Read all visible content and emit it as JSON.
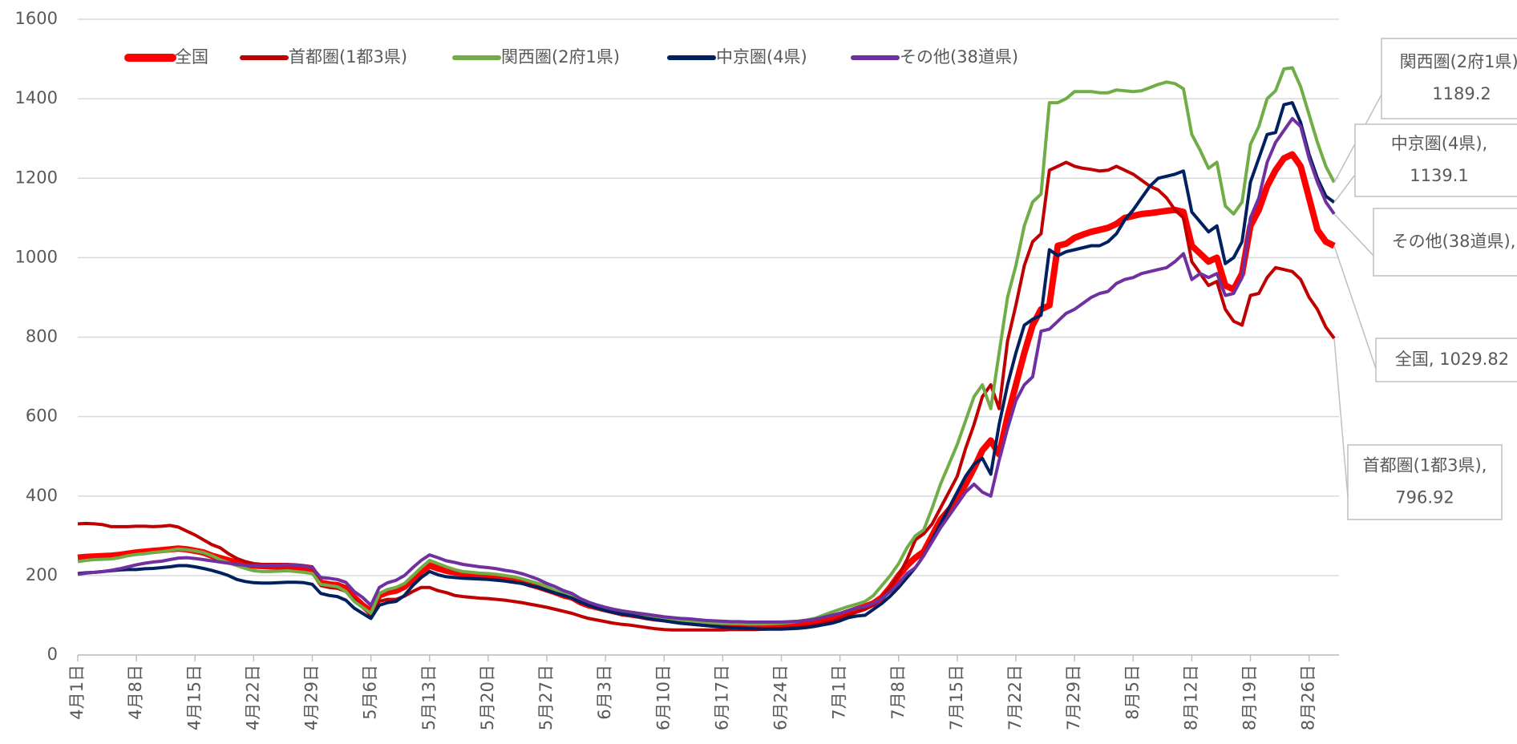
{
  "chart_data": {
    "type": "line",
    "categories": [
      "4月1日",
      null,
      null,
      null,
      null,
      null,
      null,
      "4月8日",
      null,
      null,
      null,
      null,
      null,
      null,
      "4月15日",
      null,
      null,
      null,
      null,
      null,
      null,
      "4月22日",
      null,
      null,
      null,
      null,
      null,
      null,
      "4月29日",
      null,
      null,
      null,
      null,
      null,
      null,
      "5月6日",
      null,
      null,
      null,
      null,
      null,
      null,
      "5月13日",
      null,
      null,
      null,
      null,
      null,
      null,
      "5月20日",
      null,
      null,
      null,
      null,
      null,
      null,
      "5月27日",
      null,
      null,
      null,
      null,
      null,
      null,
      "6月3日",
      null,
      null,
      null,
      null,
      null,
      null,
      "6月10日",
      null,
      null,
      null,
      null,
      null,
      null,
      "6月17日",
      null,
      null,
      null,
      null,
      null,
      null,
      "6月24日",
      null,
      null,
      null,
      null,
      null,
      null,
      "7月1日",
      null,
      null,
      null,
      null,
      null,
      null,
      "7月8日",
      null,
      null,
      null,
      null,
      null,
      null,
      "7月15日",
      null,
      null,
      null,
      null,
      null,
      null,
      "7月22日",
      null,
      null,
      null,
      null,
      null,
      null,
      "7月29日",
      null,
      null,
      null,
      null,
      null,
      null,
      "8月5日",
      null,
      null,
      null,
      null,
      null,
      null,
      "8月12日",
      null,
      null,
      null,
      null,
      null,
      null,
      "8月19日",
      null,
      null,
      null,
      null,
      null,
      null,
      "8月26日",
      null,
      null,
      null
    ],
    "series": [
      {
        "name": "全国",
        "color": "#ff0000",
        "width": 8,
        "end_label": [
          "全国, 1029.82"
        ],
        "values": [
          245,
          247,
          248,
          249,
          250,
          252,
          255,
          258,
          260,
          262,
          264,
          266,
          268,
          266,
          262,
          258,
          250,
          244,
          238,
          232,
          228,
          225,
          224,
          223,
          223,
          222,
          220,
          218,
          215,
          182,
          178,
          176,
          168,
          145,
          125,
          110,
          150,
          158,
          162,
          172,
          190,
          210,
          225,
          218,
          212,
          208,
          205,
          203,
          201,
          200,
          197,
          193,
          190,
          185,
          178,
          172,
          165,
          158,
          150,
          145,
          133,
          125,
          120,
          115,
          110,
          105,
          102,
          99,
          95,
          92,
          90,
          87,
          84,
          82,
          80,
          78,
          77,
          76,
          75,
          75,
          74,
          74,
          74,
          75,
          75,
          76,
          78,
          80,
          85,
          90,
          95,
          100,
          108,
          115,
          122,
          130,
          145,
          170,
          200,
          225,
          245,
          260,
          300,
          340,
          365,
          390,
          430,
          470,
          515,
          540,
          505,
          600,
          680,
          760,
          830,
          870,
          880,
          1030,
          1035,
          1050,
          1058,
          1065,
          1070,
          1075,
          1085,
          1100,
          1105,
          1110,
          1112,
          1115,
          1118,
          1120,
          1115,
          1030,
          1010,
          990,
          1000,
          930,
          920,
          960,
          1080,
          1120,
          1180,
          1220,
          1250,
          1260,
          1230,
          1150,
          1070,
          1040,
          1029.82
        ]
      },
      {
        "name": "首都圏(1都3県)",
        "color": "#c00000",
        "width": 4,
        "end_label": [
          "首都圏(1都3県),",
          "796.92"
        ],
        "values": [
          330,
          331,
          330,
          328,
          323,
          323,
          323,
          324,
          324,
          323,
          324,
          326,
          322,
          312,
          302,
          290,
          278,
          270,
          255,
          243,
          235,
          230,
          228,
          228,
          228,
          228,
          227,
          225,
          222,
          175,
          170,
          168,
          160,
          140,
          120,
          100,
          135,
          140,
          140,
          148,
          160,
          170,
          170,
          162,
          157,
          150,
          147,
          145,
          143,
          142,
          140,
          138,
          135,
          132,
          128,
          124,
          120,
          115,
          110,
          105,
          98,
          92,
          88,
          84,
          80,
          77,
          75,
          72,
          69,
          66,
          64,
          63,
          63,
          63,
          63,
          63,
          63,
          63,
          64,
          64,
          64,
          64,
          65,
          66,
          67,
          68,
          70,
          72,
          75,
          80,
          85,
          92,
          100,
          108,
          115,
          125,
          145,
          170,
          200,
          240,
          290,
          305,
          330,
          370,
          410,
          450,
          520,
          580,
          650,
          680,
          620,
          790,
          880,
          980,
          1040,
          1060,
          1220,
          1230,
          1240,
          1230,
          1225,
          1222,
          1218,
          1220,
          1230,
          1220,
          1210,
          1195,
          1180,
          1170,
          1150,
          1120,
          1100,
          990,
          960,
          930,
          940,
          870,
          840,
          830,
          905,
          910,
          950,
          975,
          970,
          965,
          945,
          900,
          870,
          825,
          796.92
        ]
      },
      {
        "name": "関西圏(2府1県)",
        "color": "#70ad47",
        "width": 4,
        "end_label": [
          "関西圏(2府1県),",
          "1189.2"
        ],
        "values": [
          235,
          238,
          240,
          241,
          242,
          245,
          250,
          253,
          255,
          258,
          260,
          263,
          267,
          265,
          262,
          258,
          250,
          240,
          232,
          225,
          218,
          212,
          210,
          210,
          211,
          212,
          210,
          208,
          205,
          178,
          175,
          172,
          160,
          135,
          120,
          105,
          155,
          165,
          170,
          180,
          200,
          220,
          238,
          230,
          222,
          215,
          210,
          208,
          206,
          205,
          203,
          200,
          197,
          192,
          186,
          180,
          172,
          162,
          155,
          148,
          137,
          128,
          122,
          117,
          112,
          108,
          104,
          100,
          97,
          94,
          92,
          90,
          88,
          86,
          84,
          82,
          81,
          80,
          79,
          79,
          78,
          78,
          78,
          79,
          80,
          82,
          85,
          88,
          92,
          100,
          108,
          115,
          122,
          128,
          135,
          150,
          175,
          200,
          230,
          270,
          300,
          315,
          370,
          430,
          480,
          530,
          590,
          650,
          680,
          620,
          760,
          900,
          980,
          1080,
          1140,
          1160,
          1390,
          1390,
          1400,
          1418,
          1418,
          1418,
          1415,
          1415,
          1422,
          1420,
          1418,
          1420,
          1428,
          1436,
          1442,
          1438,
          1425,
          1310,
          1270,
          1225,
          1240,
          1130,
          1110,
          1140,
          1285,
          1330,
          1400,
          1420,
          1475,
          1478,
          1430,
          1360,
          1290,
          1230,
          1189.2
        ]
      },
      {
        "name": "中京圏(4県)",
        "color": "#002060",
        "width": 4,
        "end_label": [
          "中京圏(4県),",
          "1139.1"
        ],
        "values": [
          205,
          207,
          208,
          210,
          212,
          214,
          215,
          215,
          217,
          218,
          220,
          222,
          225,
          225,
          222,
          218,
          213,
          207,
          200,
          190,
          185,
          182,
          181,
          181,
          182,
          183,
          183,
          182,
          178,
          155,
          150,
          147,
          138,
          118,
          105,
          92,
          125,
          132,
          135,
          150,
          175,
          195,
          210,
          202,
          197,
          195,
          193,
          192,
          191,
          190,
          188,
          186,
          183,
          180,
          175,
          170,
          163,
          156,
          150,
          143,
          133,
          125,
          118,
          112,
          107,
          103,
          100,
          96,
          92,
          89,
          86,
          83,
          80,
          78,
          76,
          74,
          72,
          70,
          69,
          68,
          67,
          66,
          65,
          65,
          65,
          66,
          67,
          69,
          72,
          76,
          80,
          86,
          94,
          98,
          100,
          115,
          130,
          148,
          170,
          195,
          220,
          250,
          290,
          330,
          370,
          410,
          450,
          480,
          495,
          455,
          580,
          680,
          760,
          830,
          845,
          855,
          1020,
          1005,
          1015,
          1020,
          1025,
          1030,
          1030,
          1040,
          1060,
          1095,
          1120,
          1150,
          1180,
          1200,
          1205,
          1210,
          1218,
          1115,
          1090,
          1065,
          1080,
          985,
          1000,
          1040,
          1190,
          1250,
          1310,
          1315,
          1385,
          1390,
          1340,
          1260,
          1200,
          1155,
          1139.1
        ]
      },
      {
        "name": "その他(38道県)",
        "color": "#7030a0",
        "width": 4,
        "end_label": [
          "その他(38道県),"
        ],
        "values": [
          203,
          206,
          208,
          210,
          213,
          217,
          222,
          227,
          231,
          234,
          236,
          240,
          244,
          245,
          243,
          240,
          237,
          234,
          231,
          228,
          226,
          225,
          225,
          226,
          226,
          227,
          226,
          224,
          220,
          195,
          193,
          190,
          183,
          160,
          145,
          125,
          170,
          182,
          188,
          200,
          220,
          238,
          252,
          245,
          237,
          233,
          228,
          225,
          222,
          220,
          217,
          213,
          210,
          205,
          198,
          190,
          180,
          172,
          162,
          155,
          142,
          133,
          126,
          120,
          115,
          111,
          108,
          105,
          102,
          99,
          96,
          94,
          92,
          91,
          89,
          87,
          86,
          85,
          84,
          84,
          83,
          83,
          83,
          83,
          83,
          84,
          85,
          87,
          90,
          95,
          100,
          105,
          112,
          118,
          122,
          130,
          142,
          160,
          180,
          205,
          220,
          250,
          285,
          320,
          350,
          380,
          410,
          430,
          410,
          400,
          490,
          570,
          640,
          680,
          700,
          815,
          820,
          840,
          860,
          870,
          885,
          900,
          910,
          915,
          935,
          945,
          950,
          960,
          965,
          970,
          975,
          990,
          1010,
          945,
          960,
          950,
          960,
          905,
          910,
          950,
          1100,
          1150,
          1240,
          1290,
          1320,
          1350,
          1330,
          1250,
          1190,
          1140,
          1110
        ]
      }
    ],
    "ylim": [
      0,
      1600
    ],
    "yticks": [
      0,
      200,
      400,
      600,
      800,
      1000,
      1200,
      1400,
      1600
    ],
    "grid": true,
    "legend": "top"
  }
}
